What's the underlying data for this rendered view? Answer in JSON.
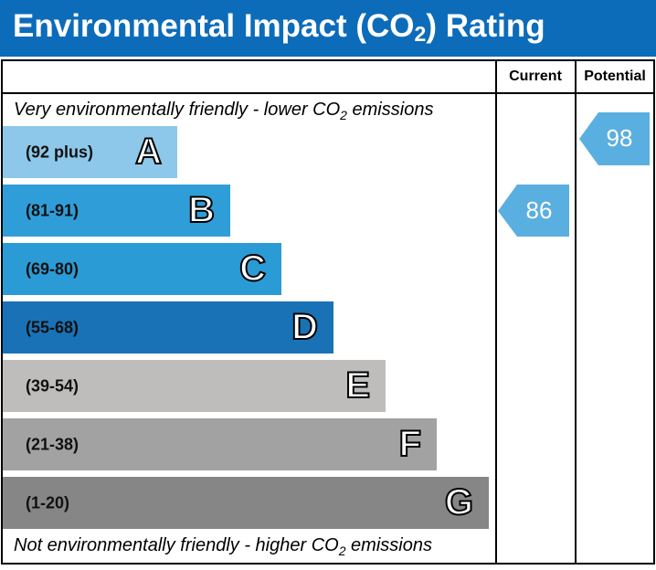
{
  "header": {
    "title": [
      "Environmental Impact (CO",
      "2",
      ") Rating"
    ]
  },
  "columns": {
    "current": "Current",
    "potential": "Potential"
  },
  "top_note": [
    "Very environmentally friendly - lower CO",
    "2",
    " emissions"
  ],
  "bottom_note": [
    "Not environmentally friendly - higher CO",
    "2",
    " emissions"
  ],
  "bands": [
    {
      "range": "(92 plus)",
      "letter": "A",
      "color": "#8dc8ea"
    },
    {
      "range": "(81-91)",
      "letter": "B",
      "color": "#2f9ed8"
    },
    {
      "range": "(69-80)",
      "letter": "C",
      "color": "#2b9bd6"
    },
    {
      "range": "(55-68)",
      "letter": "D",
      "color": "#1a72b6"
    },
    {
      "range": "(39-54)",
      "letter": "E",
      "color": "#bebdbc"
    },
    {
      "range": "(21-38)",
      "letter": "F",
      "color": "#a2a2a2"
    },
    {
      "range": "(1-20)",
      "letter": "G",
      "color": "#868686"
    }
  ],
  "current": {
    "value": "86",
    "color": "#5aafe1"
  },
  "potential": {
    "value": "98",
    "color": "#5aafe1"
  }
}
